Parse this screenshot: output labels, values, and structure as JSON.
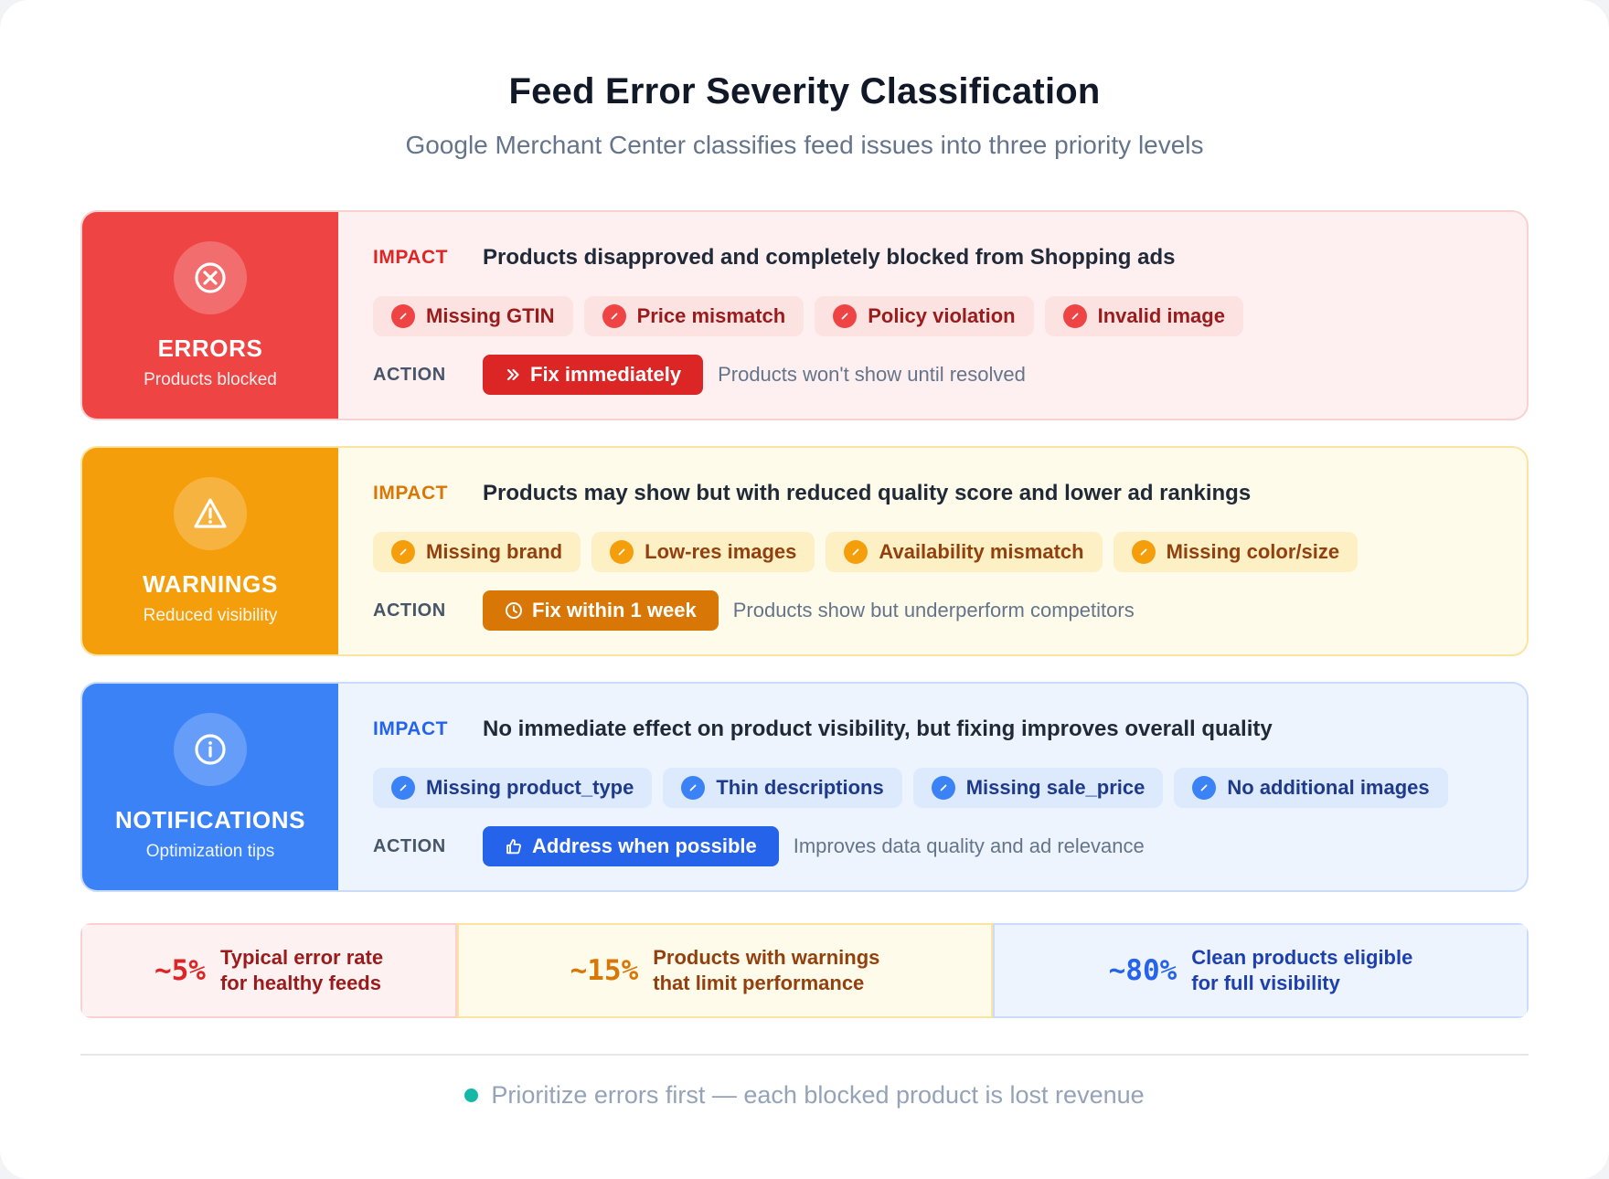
{
  "header": {
    "title": "Feed Error Severity Classification",
    "subtitle": "Google Merchant Center classifies feed issues into three priority levels"
  },
  "tiers": [
    {
      "name": "ERRORS",
      "desc": "Products blocked",
      "icon": "x-circle-icon",
      "impact_label": "IMPACT",
      "impact_text": "Products disapproved and completely blocked from Shopping ads",
      "chips": [
        "Missing GTIN",
        "Price mismatch",
        "Policy violation",
        "Invalid image"
      ],
      "action_label": "ACTION",
      "action_button": "Fix immediately",
      "action_icon": "double-chevron-right-icon",
      "action_note": "Products won't show until resolved",
      "colors": {
        "side": "#ef4444",
        "bg": "#fef0f0",
        "border": "#fbd0d0",
        "label": "#dc2626",
        "chip_bg": "#fde2e2",
        "chip_text": "#991b1b",
        "chip_dot": "#ef4444",
        "button": "#dc2626"
      }
    },
    {
      "name": "WARNINGS",
      "desc": "Reduced visibility",
      "icon": "warning-triangle-icon",
      "impact_label": "IMPACT",
      "impact_text": "Products may show but with reduced quality score and lower ad rankings",
      "chips": [
        "Missing brand",
        "Low-res images",
        "Availability mismatch",
        "Missing color/size"
      ],
      "action_label": "ACTION",
      "action_button": "Fix within 1 week",
      "action_icon": "clock-icon",
      "action_note": "Products show but underperform competitors",
      "colors": {
        "side": "#f59e0b",
        "bg": "#fefbea",
        "border": "#fbe3a0",
        "label": "#d97706",
        "chip_bg": "#fdf0c4",
        "chip_text": "#92400e",
        "chip_dot": "#f59e0b",
        "button": "#d97706"
      }
    },
    {
      "name": "NOTIFICATIONS",
      "desc": "Optimization tips",
      "icon": "info-circle-icon",
      "impact_label": "IMPACT",
      "impact_text": "No immediate effect on product visibility, but fixing improves overall quality",
      "chips": [
        "Missing product_type",
        "Thin descriptions",
        "Missing sale_price",
        "No additional images"
      ],
      "action_label": "ACTION",
      "action_button": "Address when possible",
      "action_icon": "thumbs-up-icon",
      "action_note": "Improves data quality and ad relevance",
      "colors": {
        "side": "#3b82f6",
        "bg": "#eef4fe",
        "border": "#c9dcfb",
        "label": "#2563eb",
        "chip_bg": "#dde9fd",
        "chip_text": "#1e3a8a",
        "chip_dot": "#3b82f6",
        "button": "#2563eb"
      }
    }
  ],
  "stats": [
    {
      "value": "~5%",
      "line1": "Typical error rate",
      "line2": "for healthy feeds",
      "colors": {
        "bg": "#fef1f1",
        "border": "#fbd0d0",
        "value": "#dc2626",
        "text": "#991b1b"
      }
    },
    {
      "value": "~15%",
      "line1": "Products with warnings",
      "line2": "that limit performance",
      "colors": {
        "bg": "#fefbea",
        "border": "#fbe3a0",
        "value": "#d97706",
        "text": "#92400e"
      }
    },
    {
      "value": "~80%",
      "line1": "Clean products eligible",
      "line2": "for full visibility",
      "colors": {
        "bg": "#eef4fe",
        "border": "#c9dcfb",
        "value": "#2563eb",
        "text": "#1e40af"
      }
    }
  ],
  "footer": {
    "text": "Prioritize errors first — each blocked product is lost revenue",
    "dot_color": "#14b8a6"
  }
}
